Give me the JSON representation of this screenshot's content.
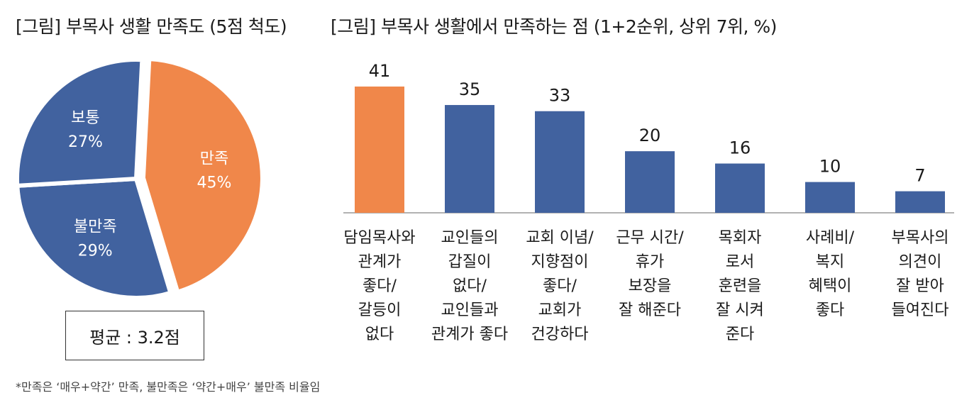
{
  "left_title": "[그림] 부목사 생활 만족도 (5점 척도)",
  "right_title": "[그림] 부목사 생활에서 만족하는 점 (1+2순위, 상위 7위, %)",
  "average_label": "평균 : 3.2점",
  "footnote": "*만족은 ‘매우+약간’ 만족, 불만족은 ‘약간+매우’ 불만족 비율임",
  "colors": {
    "orange": "#F0874A",
    "blue": "#41629F",
    "axis": "#999999"
  },
  "chart_data": [
    {
      "type": "pie",
      "title": "[그림] 부목사 생활 만족도 (5점 척도)",
      "slices": [
        {
          "name": "만족",
          "value": 45,
          "label": "45%",
          "color": "#F0874A"
        },
        {
          "name": "불만족",
          "value": 29,
          "label": "29%",
          "color": "#41629F"
        },
        {
          "name": "보통",
          "value": 27,
          "label": "27%",
          "color": "#41629F"
        }
      ],
      "annotation": "평균 : 3.2점"
    },
    {
      "type": "bar",
      "title": "[그림] 부목사 생활에서 만족하는 점 (1+2순위, 상위 7위, %)",
      "categories": [
        [
          "담임목사와",
          "관계가",
          "좋다/",
          "갈등이",
          "없다"
        ],
        [
          "교인들의",
          "갑질이",
          "없다/",
          "교인들과",
          "관계가 좋다"
        ],
        [
          "교회 이념/",
          "지향점이",
          "좋다/",
          "교회가",
          "건강하다"
        ],
        [
          "근무 시간/",
          "휴가",
          "보장을",
          "잘 해준다"
        ],
        [
          "목회자",
          "로서",
          "훈련을",
          "잘 시켜",
          "준다"
        ],
        [
          "사례비/",
          "복지",
          "혜택이",
          "좋다"
        ],
        [
          "부목사의",
          "의견이",
          "잘 받아",
          "들여진다"
        ]
      ],
      "values": [
        41,
        35,
        33,
        20,
        16,
        10,
        7
      ],
      "highlight_index": 0,
      "ylim": [
        0,
        41
      ]
    }
  ]
}
